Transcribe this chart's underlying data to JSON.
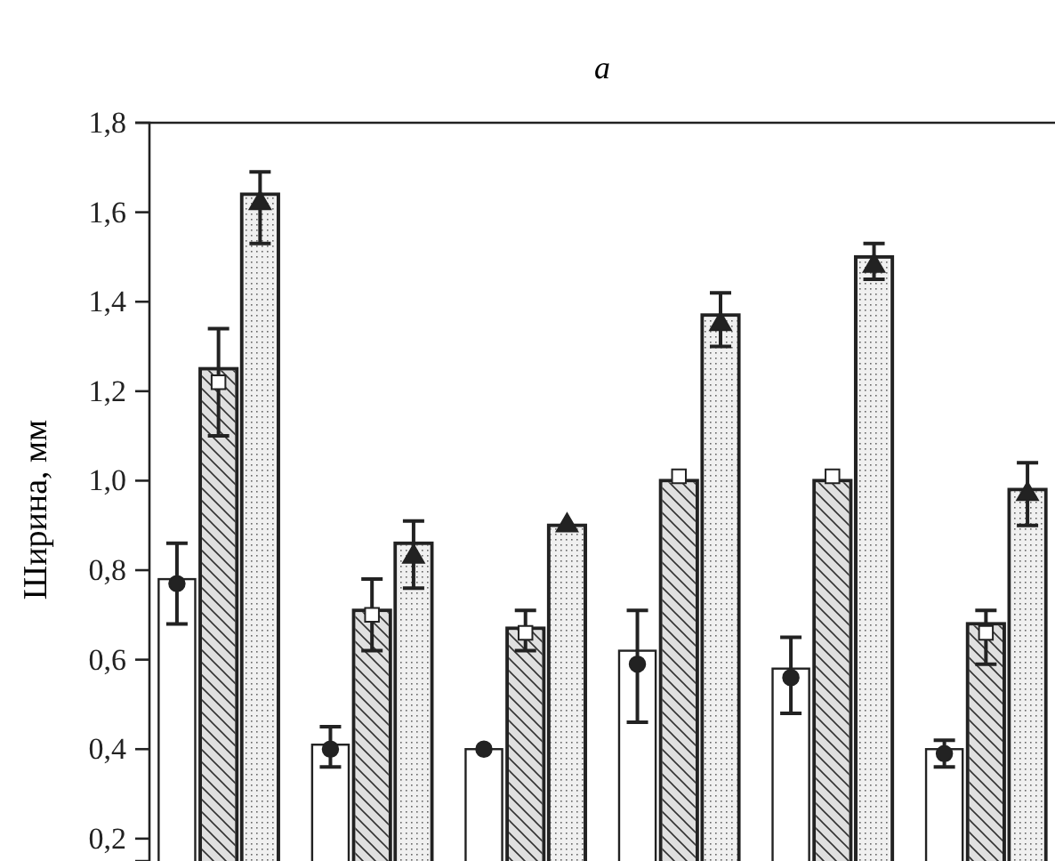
{
  "chart_data": {
    "type": "bar",
    "title": "a",
    "ylabel": "Ширина, мм",
    "categories": [
      null,
      null,
      null,
      null,
      null,
      null
    ],
    "ylim": [
      0.15,
      1.8
    ],
    "yticks": [
      {
        "value": 0.2,
        "label": "0,2"
      },
      {
        "value": 0.4,
        "label": "0,4"
      },
      {
        "value": 0.6,
        "label": "0,6"
      },
      {
        "value": 0.8,
        "label": "0,8"
      },
      {
        "value": 1.0,
        "label": "1,0"
      },
      {
        "value": 1.2,
        "label": "1,2"
      },
      {
        "value": 1.4,
        "label": "1,4"
      },
      {
        "value": 1.6,
        "label": "1,6"
      },
      {
        "value": 1.8,
        "label": "1,8"
      }
    ],
    "grid": false,
    "series": [
      {
        "color": "#ffffff",
        "values": [
          0.78,
          0.41,
          0.4,
          0.62,
          0.58,
          0.4
        ],
        "errors": [
          [
            0.68,
            0.86
          ],
          [
            0.36,
            0.45
          ],
          null,
          [
            0.46,
            0.71
          ],
          [
            0.48,
            0.65
          ],
          [
            0.36,
            0.42
          ]
        ]
      },
      {
        "color": "#e0e0e0",
        "values": [
          1.25,
          0.71,
          0.67,
          1.0,
          1.0,
          0.68
        ],
        "errors": [
          [
            1.1,
            1.34
          ],
          [
            0.62,
            0.78
          ],
          [
            0.62,
            0.71
          ],
          null,
          null,
          [
            0.59,
            0.71
          ]
        ]
      },
      {
        "color": "#f0f0f0",
        "values": [
          1.64,
          0.86,
          0.9,
          1.37,
          1.5,
          0.98
        ],
        "errors": [
          [
            1.53,
            1.69
          ],
          [
            0.76,
            0.91
          ],
          null,
          [
            1.3,
            1.42
          ],
          [
            1.45,
            1.53
          ],
          [
            0.9,
            1.04
          ]
        ]
      },
      {
        "type": "scatter",
        "marker": "circle",
        "color": "#222222",
        "values": [
          0.77,
          0.4,
          0.4,
          0.59,
          0.56,
          0.39
        ]
      },
      {
        "type": "scatter",
        "marker": "square",
        "color": "#ffffff",
        "values": [
          1.22,
          0.7,
          0.66,
          1.01,
          1.01,
          0.66
        ]
      },
      {
        "type": "scatter",
        "marker": "triangle",
        "color": "#222222",
        "values": [
          1.62,
          0.83,
          0.9,
          1.35,
          1.48,
          0.97
        ]
      }
    ]
  }
}
